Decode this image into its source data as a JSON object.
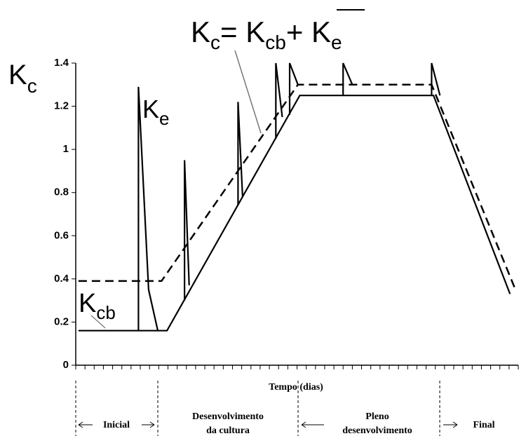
{
  "chart_data": {
    "type": "line",
    "y_label": {
      "main": "K",
      "sub": "c"
    },
    "formula": {
      "k1": "K",
      "s1": "c",
      "eq": "= ",
      "k2": "K",
      "s2": "cb",
      "plus": "+ ",
      "k3": "K",
      "s3": "e"
    },
    "annotations": [
      {
        "main": "K",
        "sub": "e"
      },
      {
        "main": "K",
        "sub": "cb"
      }
    ],
    "x_label": "Tempo (dias)",
    "phases": [
      [
        "Inicial"
      ],
      [
        "Desenvolvimento",
        "da cultura"
      ],
      [
        "Pleno",
        "desenvolvimento"
      ],
      [
        "Final"
      ]
    ],
    "xlim": [
      0,
      48
    ],
    "xticks": [
      0,
      1,
      2,
      3,
      4,
      5,
      6,
      7,
      8,
      9,
      10,
      11,
      12,
      13,
      14,
      15,
      16,
      17,
      18,
      19,
      20,
      21,
      22,
      23,
      24,
      25,
      26,
      27,
      28,
      29,
      30,
      31,
      32,
      33,
      34,
      35,
      36,
      37,
      38,
      39,
      40,
      41,
      42,
      43,
      44,
      45,
      46,
      47,
      48
    ],
    "ylim": [
      0,
      1.4
    ],
    "yticks": [
      0,
      0.2,
      0.4,
      0.6,
      0.8,
      1,
      1.2,
      1.4
    ],
    "series": [
      {
        "color": "#000000",
        "dashed": false,
        "x": [
          0.3,
          9.9,
          24.3,
          38.8,
          47.1
        ],
        "values": [
          0.16,
          0.16,
          1.25,
          1.25,
          0.33
        ]
      },
      {
        "color": "#000000",
        "dashed": true,
        "x": [
          0.3,
          9.3,
          24.1,
          38.6,
          47.6
        ],
        "values": [
          0.39,
          0.39,
          1.3,
          1.3,
          0.36
        ]
      },
      {
        "color": "#000000",
        "dashed": false,
        "x": [
          6.8,
          6.8,
          7.9,
          8.9,
          8.9,
          11.8,
          11.8,
          12.3,
          12.3,
          17.6,
          17.6,
          18.1,
          18.1,
          21.7,
          21.7,
          22.4,
          22.4,
          23.2,
          23.2,
          24.1,
          24.1,
          29.0,
          29.0,
          30.0,
          30.0,
          38.6,
          38.6,
          39.5
        ],
        "values": [
          0.16,
          1.29,
          0.35,
          0.16,
          null,
          0.3,
          0.95,
          0.37,
          null,
          0.74,
          1.22,
          0.78,
          null,
          1.05,
          1.4,
          1.15,
          null,
          1.16,
          1.4,
          1.3,
          null,
          1.25,
          1.4,
          1.3,
          null,
          1.25,
          1.4,
          1.25
        ]
      }
    ]
  }
}
